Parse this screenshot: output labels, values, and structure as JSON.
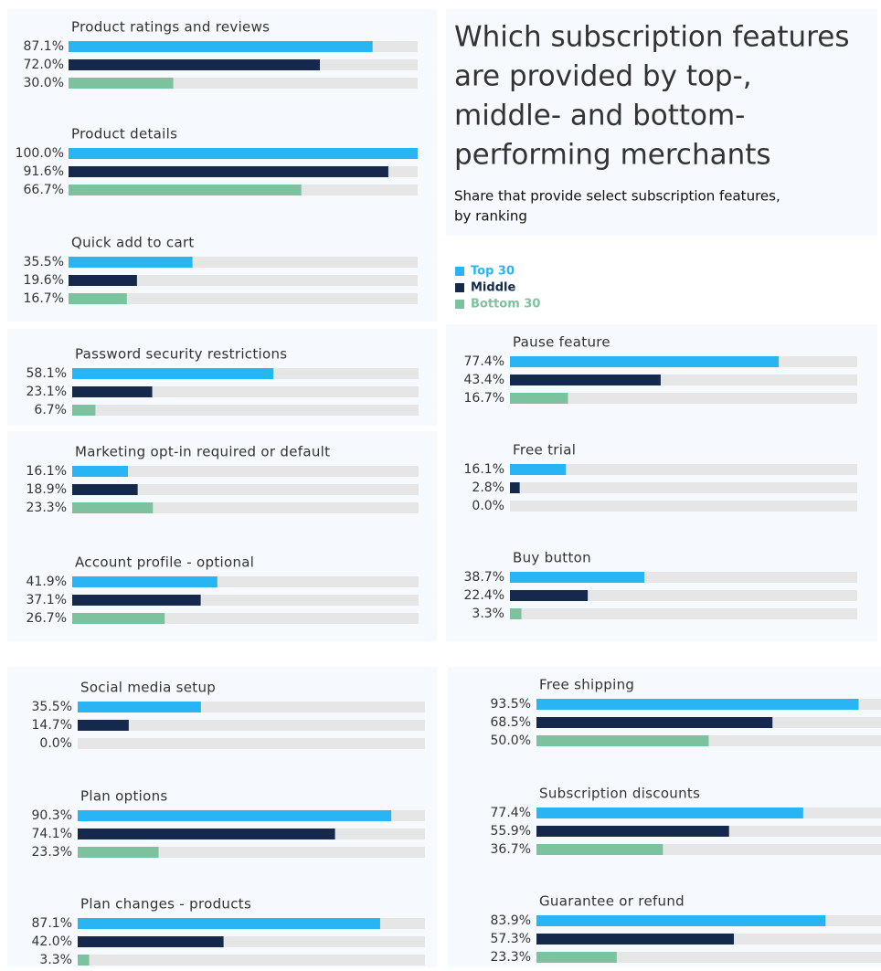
{
  "header": {
    "title": [
      "Which subscription features",
      "are provided by top-,",
      "middle- and bottom-",
      "performing merchants"
    ],
    "subtitle": [
      "Share that provide select subscription features,",
      "by ranking"
    ]
  },
  "legend": [
    {
      "name": "Top 30",
      "color": "#29b5f4"
    },
    {
      "name": "Middle",
      "color": "#14294b"
    },
    {
      "name": "Bottom 30",
      "color": "#7dc29e"
    }
  ],
  "chart_data": [
    {
      "type": "bar",
      "title": "Product ratings and reviews",
      "values": [
        87.1,
        72.0,
        30.0
      ],
      "value_labels": [
        "87.1%",
        "72.0%",
        "30.0%"
      ],
      "xlim": [
        0,
        100
      ]
    },
    {
      "type": "bar",
      "title": "Product details",
      "values": [
        100.0,
        91.6,
        66.7
      ],
      "value_labels": [
        "100.0%",
        "91.6%",
        "66.7%"
      ],
      "xlim": [
        0,
        100
      ]
    },
    {
      "type": "bar",
      "title": "Quick add to cart",
      "values": [
        35.5,
        19.6,
        16.7
      ],
      "value_labels": [
        "35.5%",
        "19.6%",
        "16.7%"
      ],
      "xlim": [
        0,
        100
      ]
    },
    {
      "type": "bar",
      "title": "Password security restrictions",
      "values": [
        58.1,
        23.1,
        6.7
      ],
      "value_labels": [
        "58.1%",
        "23.1%",
        "6.7%"
      ],
      "xlim": [
        0,
        100
      ]
    },
    {
      "type": "bar",
      "title": "Marketing opt-in required or default",
      "values": [
        16.1,
        18.9,
        23.3
      ],
      "value_labels": [
        "16.1%",
        "18.9%",
        "23.3%"
      ],
      "xlim": [
        0,
        100
      ]
    },
    {
      "type": "bar",
      "title": "Account profile - optional",
      "values": [
        41.9,
        37.1,
        26.7
      ],
      "value_labels": [
        "41.9%",
        "37.1%",
        "26.7%"
      ],
      "xlim": [
        0,
        100
      ]
    },
    {
      "type": "bar",
      "title": "Pause feature",
      "values": [
        77.4,
        43.4,
        16.7
      ],
      "value_labels": [
        "77.4%",
        "43.4%",
        "16.7%"
      ],
      "xlim": [
        0,
        100
      ]
    },
    {
      "type": "bar",
      "title": "Free trial",
      "values": [
        16.1,
        2.8,
        0.0
      ],
      "value_labels": [
        "16.1%",
        "2.8%",
        "0.0%"
      ],
      "xlim": [
        0,
        100
      ]
    },
    {
      "type": "bar",
      "title": "Buy button",
      "values": [
        38.7,
        22.4,
        3.3
      ],
      "value_labels": [
        "38.7%",
        "22.4%",
        "3.3%"
      ],
      "xlim": [
        0,
        100
      ]
    },
    {
      "type": "bar",
      "title": "Social media setup",
      "values": [
        35.5,
        14.7,
        0.0
      ],
      "value_labels": [
        "35.5%",
        "14.7%",
        "0.0%"
      ],
      "xlim": [
        0,
        100
      ]
    },
    {
      "type": "bar",
      "title": "Plan options",
      "values": [
        90.3,
        74.1,
        23.3
      ],
      "value_labels": [
        "90.3%",
        "74.1%",
        "23.3%"
      ],
      "xlim": [
        0,
        100
      ]
    },
    {
      "type": "bar",
      "title": "Plan changes - products",
      "values": [
        87.1,
        42.0,
        3.3
      ],
      "value_labels": [
        "87.1%",
        "42.0%",
        "3.3%"
      ],
      "xlim": [
        0,
        100
      ]
    },
    {
      "type": "bar",
      "title": "Free shipping",
      "values": [
        93.5,
        68.5,
        50.0
      ],
      "value_labels": [
        "93.5%",
        "68.5%",
        "50.0%"
      ],
      "xlim": [
        0,
        100
      ]
    },
    {
      "type": "bar",
      "title": "Subscription discounts",
      "values": [
        77.4,
        55.9,
        36.7
      ],
      "value_labels": [
        "77.4%",
        "55.9%",
        "36.7%"
      ],
      "xlim": [
        0,
        100
      ]
    },
    {
      "type": "bar",
      "title": "Guarantee or refund",
      "values": [
        83.9,
        57.3,
        23.3
      ],
      "value_labels": [
        "83.9%",
        "57.3%",
        "23.3%"
      ],
      "xlim": [
        0,
        100
      ]
    }
  ]
}
